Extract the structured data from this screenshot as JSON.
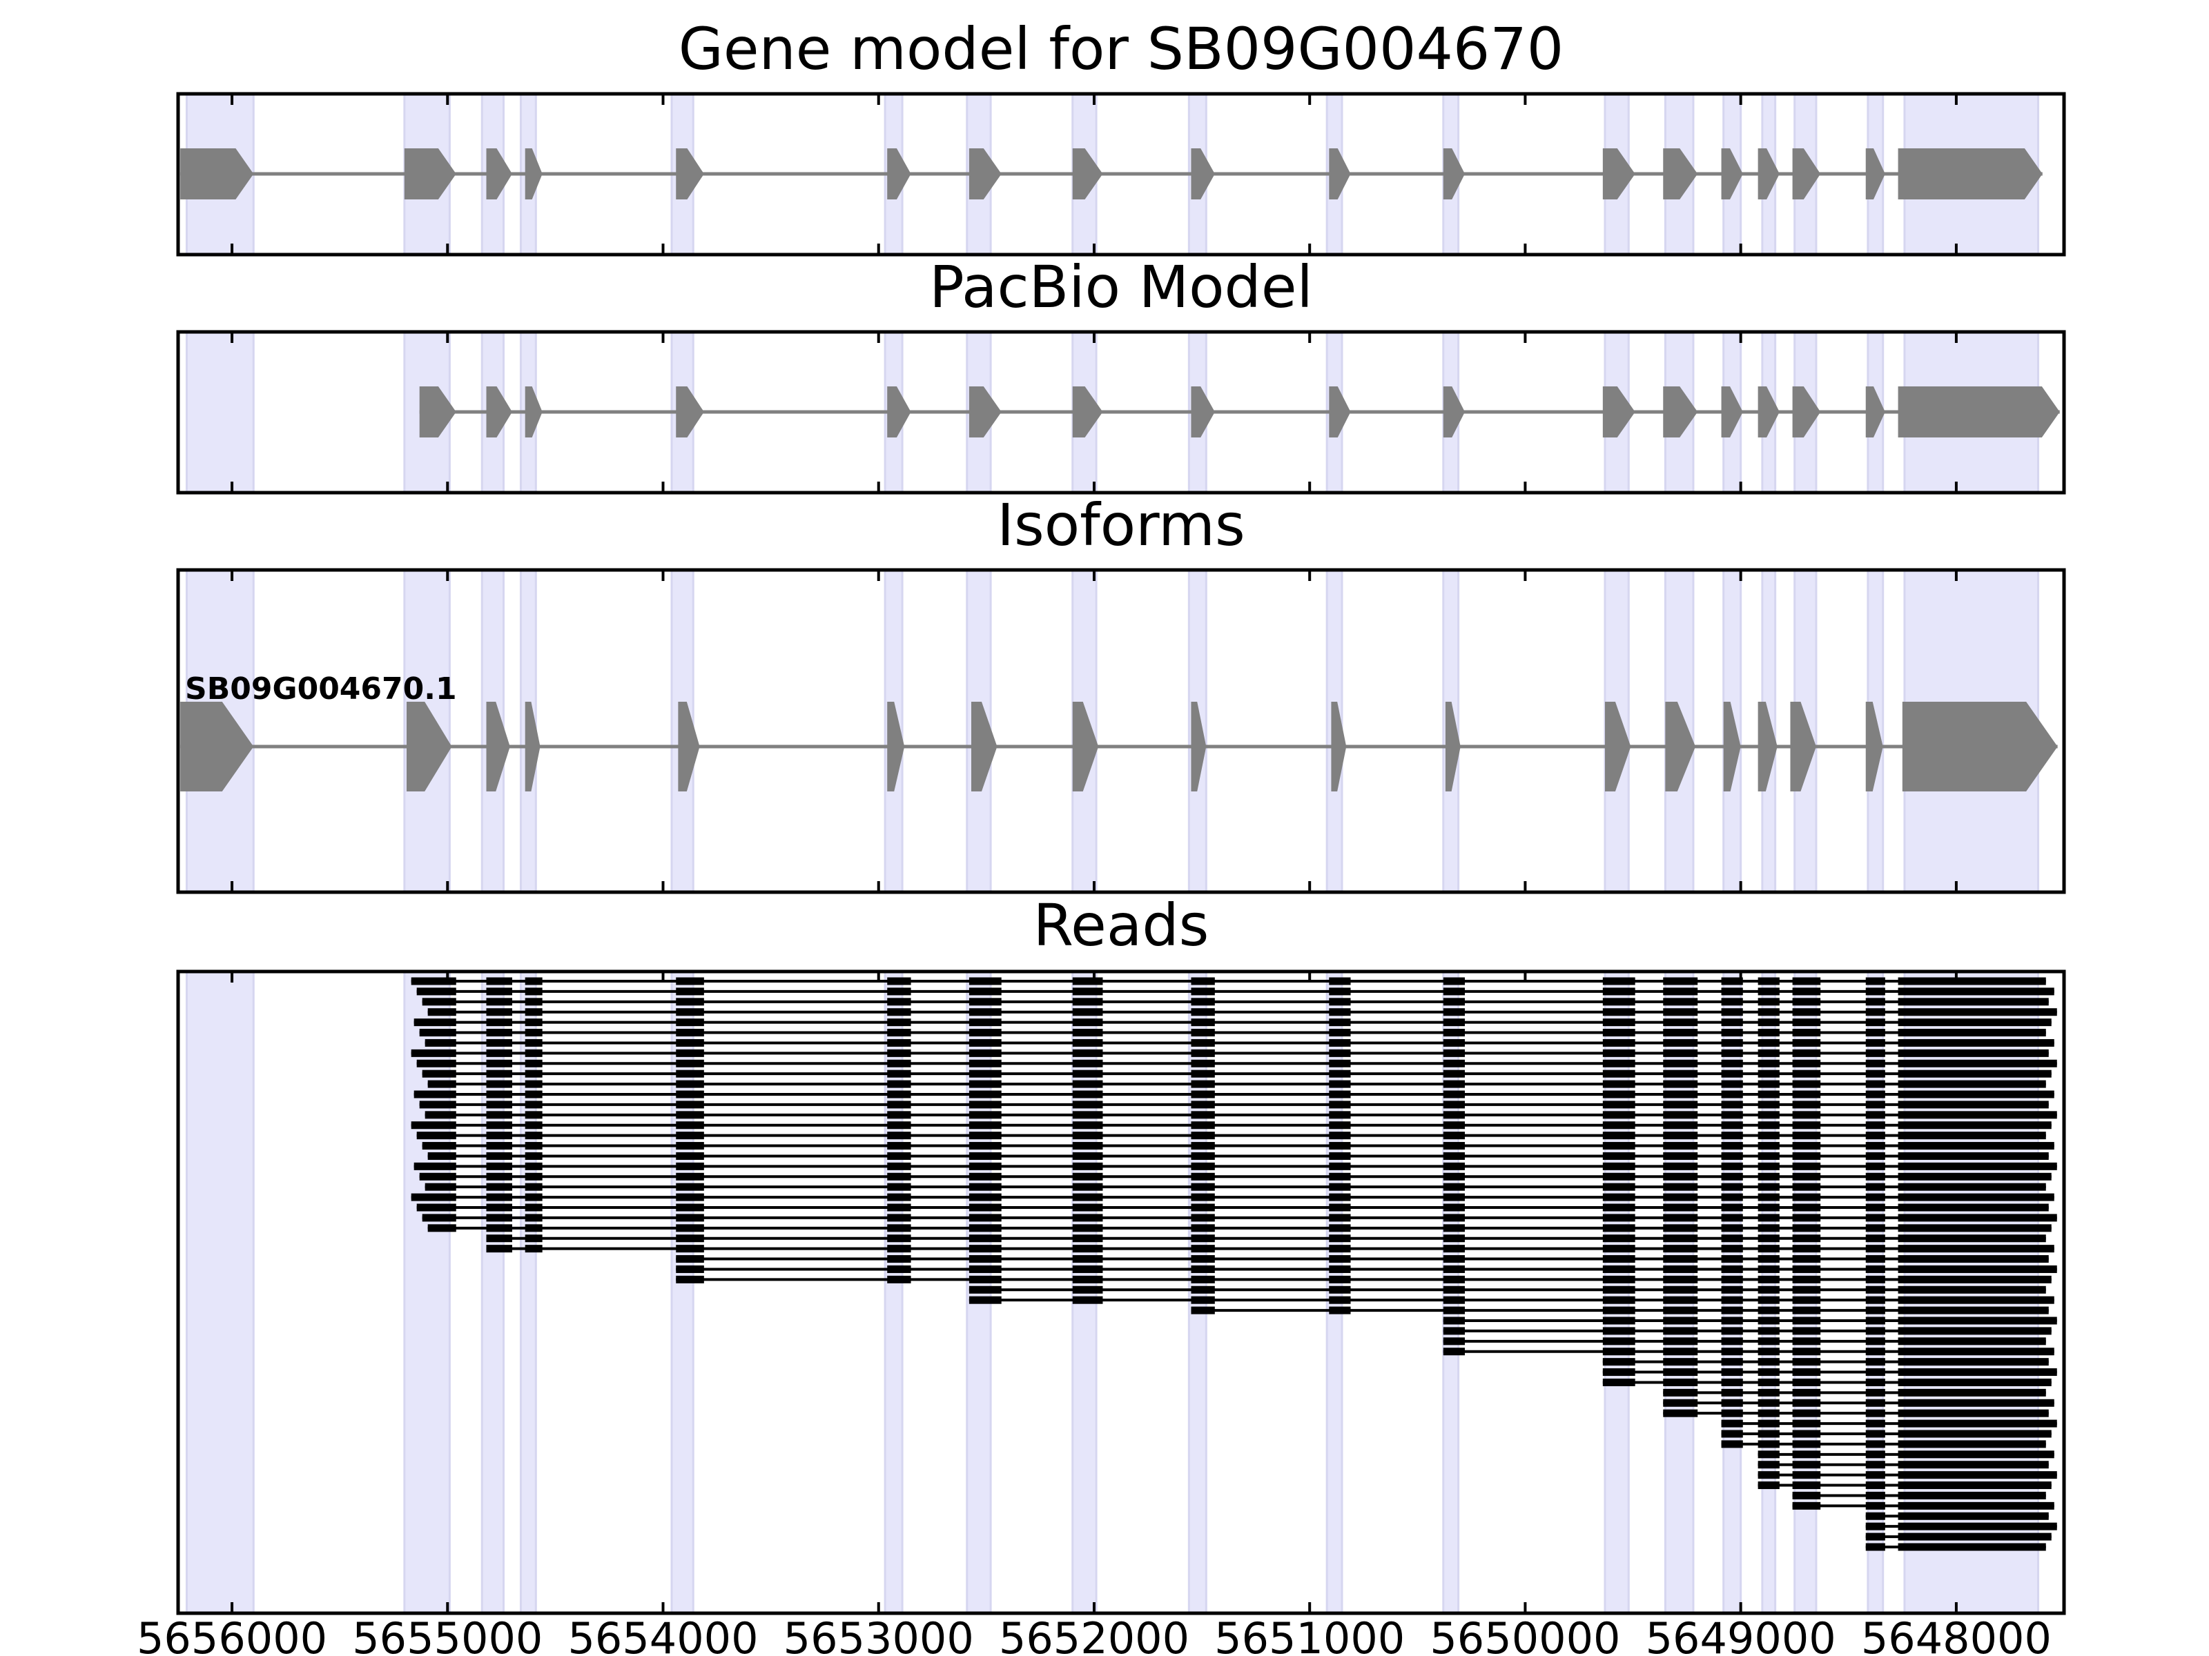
{
  "chart_data": {
    "type": "gene_structure",
    "x_reversed": true,
    "xlim": [
      5656250,
      5647500
    ],
    "x_ticks": [
      5656000,
      5655000,
      5654000,
      5653000,
      5652000,
      5651000,
      5650000,
      5649000,
      5648000
    ],
    "x_tick_labels": [
      "5656000",
      "5655000",
      "5654000",
      "5653000",
      "5652000",
      "5651000",
      "5650000",
      "5649000",
      "5648000"
    ],
    "colors": {
      "exon": "#808080",
      "intron": "#808080",
      "highlight": "#e6e6fa",
      "read": "#000000"
    },
    "highlight_regions": [
      [
        5656210,
        5655900
      ],
      [
        5655200,
        5654990
      ],
      [
        5654840,
        5654740
      ],
      [
        5654660,
        5654590
      ],
      [
        5653960,
        5653860
      ],
      [
        5652970,
        5652890
      ],
      [
        5652590,
        5652480
      ],
      [
        5652100,
        5651990
      ],
      [
        5651560,
        5651480
      ],
      [
        5650920,
        5650850
      ],
      [
        5650380,
        5650310
      ],
      [
        5649630,
        5649520
      ],
      [
        5649350,
        5649220
      ],
      [
        5649080,
        5649000
      ],
      [
        5648900,
        5648840
      ],
      [
        5648750,
        5648650
      ],
      [
        5648410,
        5648340
      ],
      [
        5648240,
        5647620
      ]
    ],
    "panels": [
      {
        "title": "Gene model for SB09G004670",
        "tracks": [
          {
            "label": "",
            "strand": "-",
            "exons": [
              [
                5656240,
                5655900
              ],
              [
                5655200,
                5654960
              ],
              [
                5654820,
                5654700
              ],
              [
                5654640,
                5654560
              ],
              [
                5653940,
                5653810
              ],
              [
                5652960,
                5652850
              ],
              [
                5652580,
                5652430
              ],
              [
                5652100,
                5651960
              ],
              [
                5651550,
                5651440
              ],
              [
                5650910,
                5650810
              ],
              [
                5650380,
                5650280
              ],
              [
                5649640,
                5649490
              ],
              [
                5649360,
                5649200
              ],
              [
                5649090,
                5648990
              ],
              [
                5648920,
                5648820
              ],
              [
                5648760,
                5648630
              ],
              [
                5648420,
                5648330
              ],
              [
                5648270,
                5647600
              ]
            ]
          }
        ]
      },
      {
        "title": "PacBio Model",
        "tracks": [
          {
            "label": "",
            "strand": "-",
            "exons": [
              [
                5655130,
                5654960
              ],
              [
                5654820,
                5654700
              ],
              [
                5654640,
                5654560
              ],
              [
                5653940,
                5653810
              ],
              [
                5652960,
                5652850
              ],
              [
                5652580,
                5652430
              ],
              [
                5652100,
                5651960
              ],
              [
                5651550,
                5651440
              ],
              [
                5650910,
                5650810
              ],
              [
                5650380,
                5650280
              ],
              [
                5649640,
                5649490
              ],
              [
                5649360,
                5649200
              ],
              [
                5649090,
                5648990
              ],
              [
                5648920,
                5648820
              ],
              [
                5648760,
                5648630
              ],
              [
                5648420,
                5648330
              ],
              [
                5648270,
                5647520
              ]
            ]
          }
        ]
      },
      {
        "title": "Isoforms",
        "tracks": [
          {
            "label": "SB09G004670.1",
            "strand": "-",
            "exons": [
              [
                5656240,
                5655900
              ],
              [
                5655190,
                5654980
              ],
              [
                5654820,
                5654710
              ],
              [
                5654640,
                5654570
              ],
              [
                5653930,
                5653830
              ],
              [
                5652960,
                5652880
              ],
              [
                5652570,
                5652450
              ],
              [
                5652100,
                5651980
              ],
              [
                5651550,
                5651480
              ],
              [
                5650900,
                5650830
              ],
              [
                5650370,
                5650300
              ],
              [
                5649630,
                5649510
              ],
              [
                5649350,
                5649210
              ],
              [
                5649080,
                5649000
              ],
              [
                5648920,
                5648830
              ],
              [
                5648770,
                5648650
              ],
              [
                5648420,
                5648340
              ],
              [
                5648250,
                5647530
              ]
            ]
          }
        ]
      },
      {
        "title": "Reads",
        "read_count": 56
      }
    ]
  }
}
